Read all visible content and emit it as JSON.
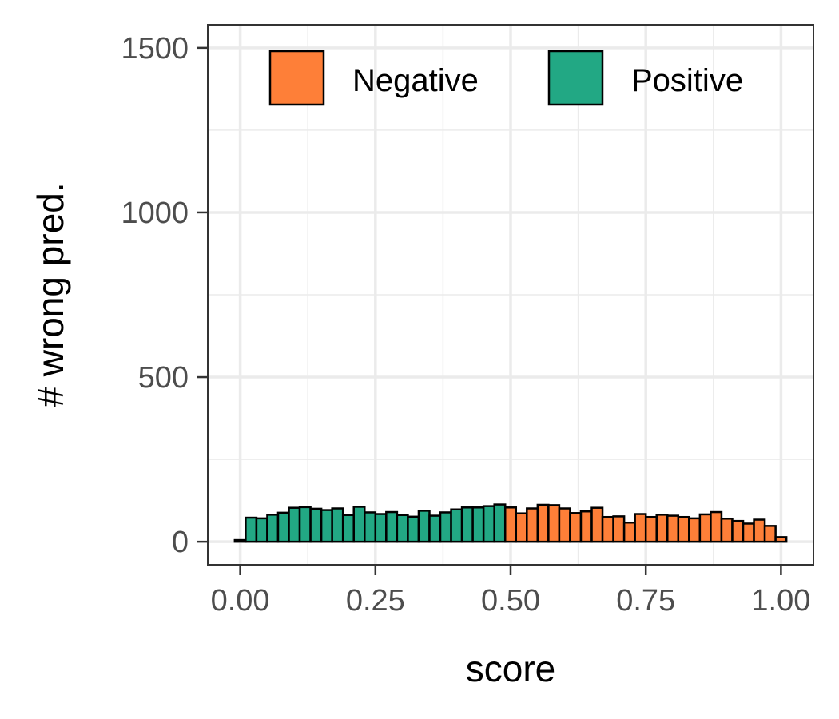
{
  "chart_data": {
    "type": "bar",
    "title": "",
    "xlabel": "score",
    "ylabel": "# wrong pred.",
    "xlim": [
      -0.06,
      1.06
    ],
    "ylim": [
      -70,
      1570
    ],
    "x_ticks": [
      {
        "value": 0.0,
        "label": "0.00"
      },
      {
        "value": 0.25,
        "label": "0.25"
      },
      {
        "value": 0.5,
        "label": "0.50"
      },
      {
        "value": 0.75,
        "label": "0.75"
      },
      {
        "value": 1.0,
        "label": "1.00"
      }
    ],
    "y_ticks": [
      {
        "value": 0,
        "label": "0"
      },
      {
        "value": 500,
        "label": "500"
      },
      {
        "value": 1000,
        "label": "1000"
      },
      {
        "value": 1500,
        "label": "1500"
      }
    ],
    "grid": true,
    "legend_position": "top-right",
    "bin_width": 0.02,
    "series": [
      {
        "name": "Positive",
        "color": "#22A884",
        "bins": [
          {
            "x": 0.0,
            "y": 5
          },
          {
            "x": 0.02,
            "y": 73
          },
          {
            "x": 0.04,
            "y": 71
          },
          {
            "x": 0.06,
            "y": 82
          },
          {
            "x": 0.08,
            "y": 88
          },
          {
            "x": 0.1,
            "y": 103
          },
          {
            "x": 0.12,
            "y": 105
          },
          {
            "x": 0.14,
            "y": 100
          },
          {
            "x": 0.16,
            "y": 96
          },
          {
            "x": 0.18,
            "y": 101
          },
          {
            "x": 0.2,
            "y": 81
          },
          {
            "x": 0.22,
            "y": 106
          },
          {
            "x": 0.24,
            "y": 89
          },
          {
            "x": 0.26,
            "y": 84
          },
          {
            "x": 0.28,
            "y": 90
          },
          {
            "x": 0.3,
            "y": 81
          },
          {
            "x": 0.32,
            "y": 76
          },
          {
            "x": 0.34,
            "y": 94
          },
          {
            "x": 0.36,
            "y": 79
          },
          {
            "x": 0.38,
            "y": 89
          },
          {
            "x": 0.4,
            "y": 98
          },
          {
            "x": 0.42,
            "y": 104
          },
          {
            "x": 0.44,
            "y": 104
          },
          {
            "x": 0.46,
            "y": 108
          },
          {
            "x": 0.48,
            "y": 113
          }
        ]
      },
      {
        "name": "Negative",
        "color": "#FE7F38",
        "bins": [
          {
            "x": 0.5,
            "y": 104
          },
          {
            "x": 0.52,
            "y": 86
          },
          {
            "x": 0.54,
            "y": 101
          },
          {
            "x": 0.56,
            "y": 112
          },
          {
            "x": 0.58,
            "y": 111
          },
          {
            "x": 0.6,
            "y": 101
          },
          {
            "x": 0.62,
            "y": 87
          },
          {
            "x": 0.64,
            "y": 92
          },
          {
            "x": 0.66,
            "y": 103
          },
          {
            "x": 0.68,
            "y": 75
          },
          {
            "x": 0.7,
            "y": 77
          },
          {
            "x": 0.72,
            "y": 58
          },
          {
            "x": 0.74,
            "y": 84
          },
          {
            "x": 0.76,
            "y": 75
          },
          {
            "x": 0.78,
            "y": 82
          },
          {
            "x": 0.8,
            "y": 79
          },
          {
            "x": 0.82,
            "y": 75
          },
          {
            "x": 0.84,
            "y": 71
          },
          {
            "x": 0.86,
            "y": 83
          },
          {
            "x": 0.88,
            "y": 90
          },
          {
            "x": 0.9,
            "y": 70
          },
          {
            "x": 0.92,
            "y": 63
          },
          {
            "x": 0.94,
            "y": 55
          },
          {
            "x": 0.96,
            "y": 67
          },
          {
            "x": 0.98,
            "y": 48
          },
          {
            "x": 1.0,
            "y": 14
          }
        ]
      }
    ],
    "legend": [
      {
        "name": "Negative",
        "color": "#FE7F38"
      },
      {
        "name": "Positive",
        "color": "#22A884"
      }
    ]
  }
}
